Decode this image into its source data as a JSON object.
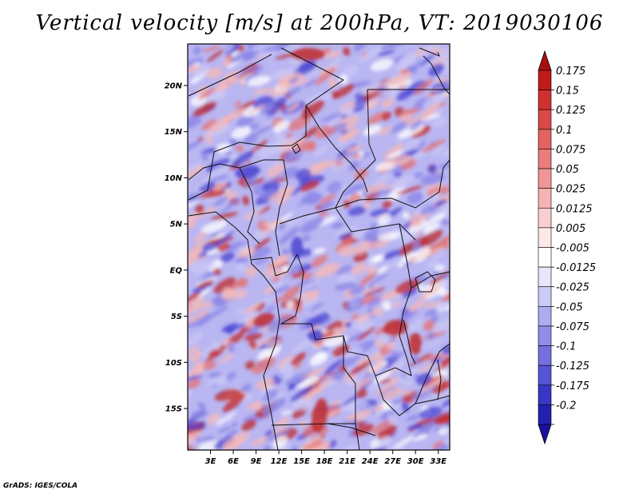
{
  "title": "Vertical velocity [m/s] at 200hPa, VT: 2019030106",
  "credit": "GrADS: IGES/COLA",
  "map": {
    "lat_ticks": [
      {
        "value": 20,
        "label": "20N"
      },
      {
        "value": 15,
        "label": "15N"
      },
      {
        "value": 10,
        "label": "10N"
      },
      {
        "value": 5,
        "label": "5N"
      },
      {
        "value": 0,
        "label": "EQ"
      },
      {
        "value": -5,
        "label": "5S"
      },
      {
        "value": -10,
        "label": "10S"
      },
      {
        "value": -15,
        "label": "15S"
      }
    ],
    "lon_ticks": [
      {
        "value": 3,
        "label": "3E"
      },
      {
        "value": 6,
        "label": "6E"
      },
      {
        "value": 9,
        "label": "9E"
      },
      {
        "value": 12,
        "label": "12E"
      },
      {
        "value": 15,
        "label": "15E"
      },
      {
        "value": 18,
        "label": "18E"
      },
      {
        "value": 21,
        "label": "21E"
      },
      {
        "value": 24,
        "label": "24E"
      },
      {
        "value": 27,
        "label": "27E"
      },
      {
        "value": 30,
        "label": "30E"
      },
      {
        "value": 33,
        "label": "33E"
      }
    ],
    "lon_range": [
      0,
      34.5
    ],
    "lat_range": [
      -19.5,
      24.5
    ]
  },
  "colorbar": {
    "levels": [
      {
        "label": "0.175",
        "color": "#c01a1a"
      },
      {
        "label": "0.15",
        "color": "#cf3030"
      },
      {
        "label": "0.125",
        "color": "#db4848"
      },
      {
        "label": "0.1",
        "color": "#e36262"
      },
      {
        "label": "0.075",
        "color": "#ea7c7c"
      },
      {
        "label": "0.05",
        "color": "#f09696"
      },
      {
        "label": "0.025",
        "color": "#f5b3b3"
      },
      {
        "label": "0.0125",
        "color": "#f9cfcf"
      },
      {
        "label": "0.005",
        "color": "#fce8e8"
      },
      {
        "label": "-0.005",
        "color": "#ffffff"
      },
      {
        "label": "-0.0125",
        "color": "#e6e6fc"
      },
      {
        "label": "-0.025",
        "color": "#cccaf6"
      },
      {
        "label": "-0.05",
        "color": "#aeabef"
      },
      {
        "label": "-0.075",
        "color": "#918de8"
      },
      {
        "label": "-0.1",
        "color": "#7470e0"
      },
      {
        "label": "-0.125",
        "color": "#5653d6"
      },
      {
        "label": "-0.175",
        "color": "#3936c7"
      },
      {
        "label": "-0.2",
        "color": "#2320b0"
      }
    ],
    "top_arrow_color": "#a81010",
    "bottom_arrow_color": "#1a0fa0"
  },
  "field_colors": {
    "blue_dark": "#4a44d0",
    "blue_mid": "#8a86e6",
    "blue_light": "#c9c7f5",
    "red_dark": "#c0282a",
    "red_mid": "#e47474",
    "red_light": "#f4b8b8"
  }
}
